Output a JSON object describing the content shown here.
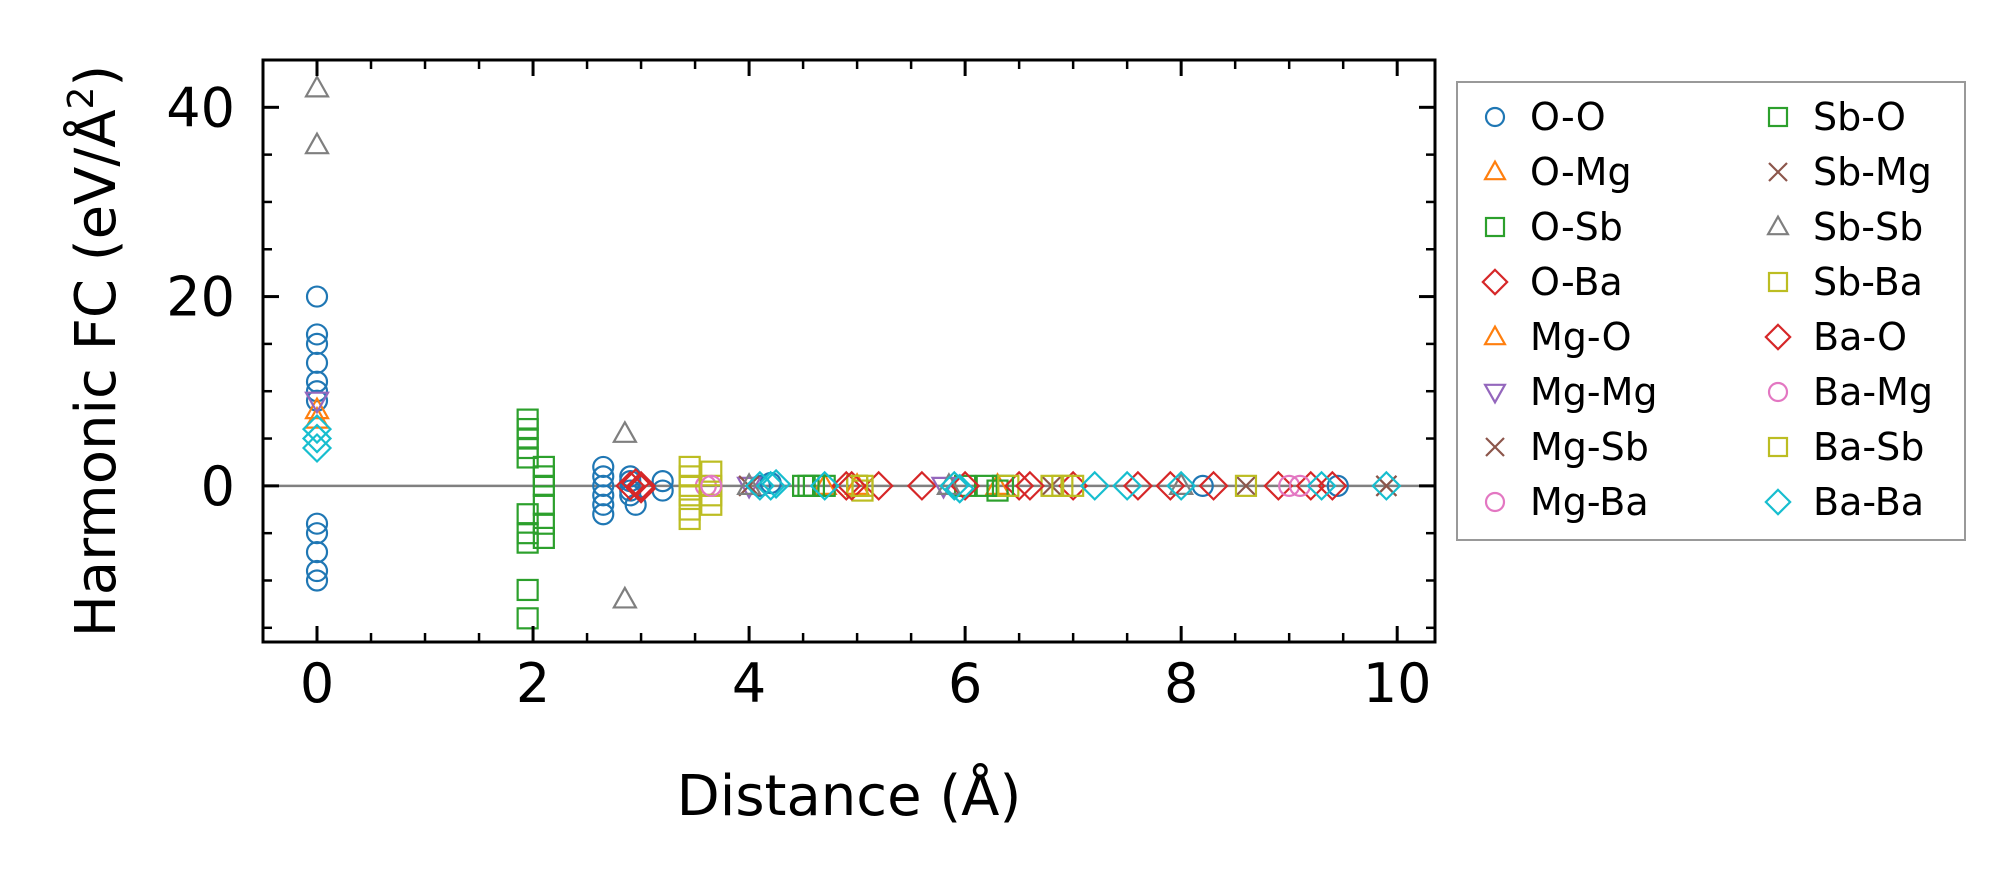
{
  "chart_data": {
    "type": "scatter",
    "title": "",
    "xlabel": "Distance (Å)",
    "ylabel_base": "Harmonic FC (eV/Å",
    "ylabel_sup": "2",
    "ylabel_end": ")",
    "xlim": [
      -0.5,
      10.35
    ],
    "ylim": [
      -16.5,
      45
    ],
    "xticks": [
      0,
      2,
      4,
      6,
      8,
      10
    ],
    "xtick_labels": [
      "0",
      "2",
      "4",
      "6",
      "8",
      "10"
    ],
    "yticks": [
      0,
      20,
      40
    ],
    "ytick_labels": [
      "0",
      "20",
      "40"
    ],
    "grid": false,
    "legend_placement": "outside-right",
    "zero_line_color": "#808080",
    "series": [
      {
        "name": "O-O",
        "marker": "circle",
        "color": "#1f77b4",
        "points": [
          [
            0,
            20
          ],
          [
            0,
            16
          ],
          [
            0,
            15
          ],
          [
            0,
            13
          ],
          [
            0,
            11
          ],
          [
            0,
            10
          ],
          [
            0,
            9
          ],
          [
            0,
            -4
          ],
          [
            0,
            -5
          ],
          [
            0,
            -7
          ],
          [
            0,
            -9
          ],
          [
            0,
            -10
          ],
          [
            2.65,
            2
          ],
          [
            2.65,
            1
          ],
          [
            2.65,
            0
          ],
          [
            2.65,
            -1
          ],
          [
            2.65,
            -2
          ],
          [
            2.65,
            -3
          ],
          [
            2.9,
            1
          ],
          [
            2.9,
            0.5
          ],
          [
            2.9,
            -0.5
          ],
          [
            2.9,
            -1
          ],
          [
            2.95,
            -2
          ],
          [
            3.2,
            0.5
          ],
          [
            3.2,
            -0.5
          ],
          [
            4.1,
            0
          ],
          [
            4.2,
            0.3
          ],
          [
            8.2,
            0
          ],
          [
            9.45,
            0
          ]
        ]
      },
      {
        "name": "O-Mg",
        "marker": "triangle-up",
        "color": "#ff7f0e",
        "points": [
          [
            0,
            8
          ],
          [
            4.7,
            0
          ],
          [
            6.3,
            0
          ]
        ]
      },
      {
        "name": "O-Sb",
        "marker": "square",
        "color": "#2ca02c",
        "points": [
          [
            1.95,
            7
          ],
          [
            1.95,
            6
          ],
          [
            1.95,
            5
          ],
          [
            1.95,
            4
          ],
          [
            1.95,
            3
          ],
          [
            1.95,
            -3
          ],
          [
            1.95,
            -5
          ],
          [
            1.95,
            -6
          ],
          [
            1.95,
            -11
          ],
          [
            1.95,
            -14
          ],
          [
            2.1,
            2
          ],
          [
            2.1,
            1
          ],
          [
            2.1,
            0
          ],
          [
            2.1,
            -2
          ],
          [
            2.1,
            -4
          ],
          [
            2.1,
            -5.5
          ],
          [
            4.5,
            0
          ],
          [
            4.6,
            0
          ],
          [
            4.7,
            0
          ],
          [
            5.0,
            0
          ],
          [
            6.0,
            0
          ],
          [
            6.2,
            0
          ],
          [
            6.3,
            -0.5
          ]
        ]
      },
      {
        "name": "O-Ba",
        "marker": "diamond",
        "color": "#d62728",
        "points": [
          [
            2.9,
            0
          ],
          [
            2.95,
            0.3
          ],
          [
            3.0,
            -0.3
          ],
          [
            3.0,
            0
          ],
          [
            4.9,
            0
          ],
          [
            5.2,
            0
          ],
          [
            5.6,
            0
          ],
          [
            6.0,
            0
          ],
          [
            6.5,
            0
          ],
          [
            7.0,
            0
          ],
          [
            7.6,
            0
          ],
          [
            8.3,
            0
          ],
          [
            8.9,
            0
          ],
          [
            9.4,
            0
          ]
        ]
      },
      {
        "name": "Mg-O",
        "marker": "triangle-up",
        "color": "#ff7f0e",
        "points": [
          [
            0,
            7
          ],
          [
            5.0,
            0
          ]
        ]
      },
      {
        "name": "Mg-Mg",
        "marker": "triangle-down",
        "color": "#9467bd",
        "points": [
          [
            0,
            9
          ],
          [
            4.0,
            0
          ],
          [
            5.8,
            0
          ]
        ]
      },
      {
        "name": "Mg-Sb",
        "marker": "x",
        "color": "#8c564b",
        "points": [
          [
            4.0,
            0
          ],
          [
            8.6,
            0
          ],
          [
            9.9,
            0
          ]
        ]
      },
      {
        "name": "Mg-Ba",
        "marker": "circle",
        "color": "#e377c2",
        "points": [
          [
            3.6,
            0
          ],
          [
            9.0,
            0
          ]
        ]
      },
      {
        "name": "Sb-O",
        "marker": "square",
        "color": "#2ca02c",
        "points": [
          [
            4.55,
            0
          ],
          [
            6.35,
            0
          ]
        ]
      },
      {
        "name": "Sb-Mg",
        "marker": "x",
        "color": "#8c564b",
        "points": [
          [
            6.8,
            0
          ],
          [
            9.9,
            0
          ]
        ]
      },
      {
        "name": "Sb-Sb",
        "marker": "triangle-up",
        "color": "#7f7f7f",
        "points": [
          [
            0,
            42
          ],
          [
            0,
            36
          ],
          [
            2.85,
            5.5
          ],
          [
            2.85,
            -12
          ],
          [
            4.0,
            0
          ],
          [
            5.85,
            0
          ],
          [
            8.0,
            0
          ]
        ]
      },
      {
        "name": "Sb-Ba",
        "marker": "square",
        "color": "#bcbd22",
        "points": [
          [
            3.45,
            2
          ],
          [
            3.45,
            1
          ],
          [
            3.45,
            0
          ],
          [
            3.45,
            -1
          ],
          [
            3.45,
            -2.5
          ],
          [
            3.45,
            -3.5
          ],
          [
            3.65,
            1.5
          ],
          [
            3.65,
            0
          ],
          [
            3.65,
            -1
          ],
          [
            3.65,
            -2
          ],
          [
            5.0,
            0
          ],
          [
            5.05,
            -0.5
          ],
          [
            6.4,
            0
          ],
          [
            6.8,
            0
          ],
          [
            7.0,
            0
          ],
          [
            8.6,
            0
          ]
        ]
      },
      {
        "name": "Ba-O",
        "marker": "diamond",
        "color": "#d62728",
        "points": [
          [
            4.95,
            0
          ],
          [
            6.6,
            0
          ],
          [
            7.9,
            0
          ],
          [
            9.2,
            0
          ]
        ]
      },
      {
        "name": "Ba-Mg",
        "marker": "circle",
        "color": "#e377c2",
        "points": [
          [
            3.65,
            0
          ],
          [
            9.1,
            0
          ]
        ]
      },
      {
        "name": "Ba-Sb",
        "marker": "square",
        "color": "#bcbd22",
        "points": [
          [
            5.05,
            0
          ],
          [
            6.9,
            0
          ]
        ]
      },
      {
        "name": "Ba-Ba",
        "marker": "diamond",
        "color": "#17becf",
        "points": [
          [
            0,
            6
          ],
          [
            0,
            5
          ],
          [
            0,
            4
          ],
          [
            4.1,
            0
          ],
          [
            4.2,
            0
          ],
          [
            4.25,
            0.2
          ],
          [
            4.7,
            0
          ],
          [
            5.9,
            0
          ],
          [
            5.95,
            -0.3
          ],
          [
            7.2,
            0
          ],
          [
            7.5,
            0
          ],
          [
            8.0,
            0
          ],
          [
            9.3,
            0
          ],
          [
            9.9,
            0
          ]
        ]
      }
    ]
  }
}
